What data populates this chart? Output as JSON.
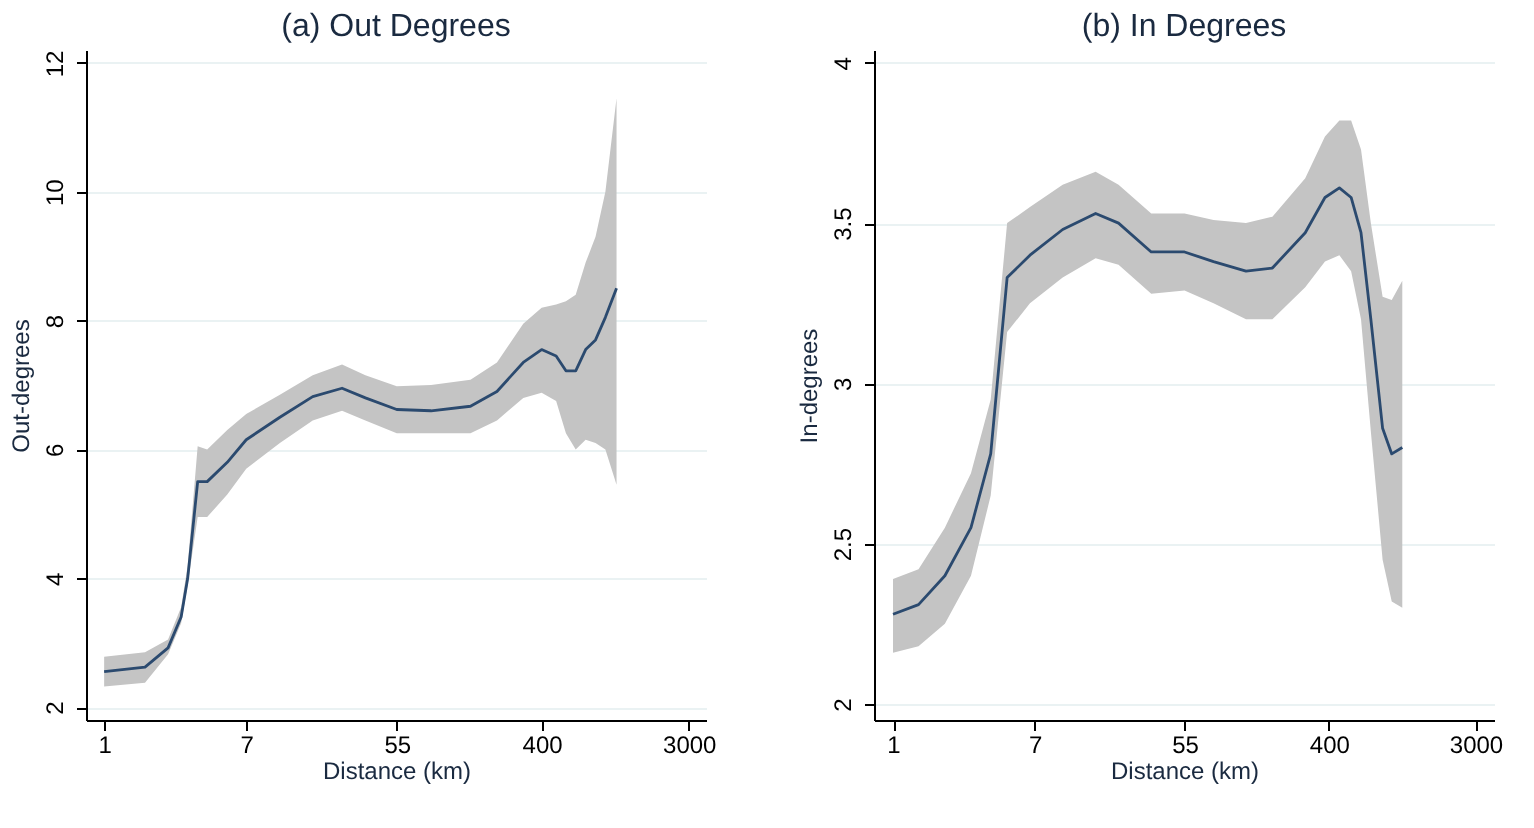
{
  "chart_data": [
    {
      "type": "line",
      "title": "(a) Out Degrees",
      "xlabel": "Distance (km)",
      "ylabel": "Out-degrees",
      "log": "x",
      "grid": "y",
      "xlim": [
        0.78,
        3800
      ],
      "xticks": [
        1,
        7,
        55,
        400,
        3000
      ],
      "ylim": [
        1.8,
        12.2
      ],
      "yticks": [
        2,
        4,
        6,
        8,
        10,
        12
      ],
      "series": [
        {
          "color": "#2b4a6f",
          "x": [
            1,
            1.75,
            2.4,
            2.87,
            3.14,
            3.6,
            4.1,
            5.4,
            7,
            11.1,
            17.4,
            26,
            35.8,
            55,
            88,
            151,
            217,
            311,
            400,
            488,
            558,
            638,
            731,
            837,
            958,
            1116
          ],
          "values": [
            2.55,
            2.62,
            2.92,
            3.4,
            4.0,
            5.5,
            5.5,
            5.8,
            6.15,
            6.5,
            6.82,
            6.95,
            6.8,
            6.62,
            6.6,
            6.67,
            6.9,
            7.35,
            7.55,
            7.45,
            7.22,
            7.22,
            7.55,
            7.7,
            8.05,
            8.5
          ],
          "lower": [
            2.32,
            2.38,
            2.82,
            3.3,
            3.9,
            4.95,
            4.95,
            5.3,
            5.7,
            6.1,
            6.45,
            6.6,
            6.45,
            6.25,
            6.25,
            6.25,
            6.45,
            6.8,
            6.88,
            6.75,
            6.25,
            6.0,
            6.15,
            6.1,
            6.0,
            5.45
          ],
          "upper": [
            2.78,
            2.85,
            3.05,
            3.55,
            4.2,
            6.05,
            6.0,
            6.3,
            6.55,
            6.85,
            7.15,
            7.32,
            7.15,
            6.98,
            7.0,
            7.08,
            7.35,
            7.95,
            8.2,
            8.25,
            8.3,
            8.4,
            8.9,
            9.3,
            10.0,
            11.45
          ]
        }
      ]
    },
    {
      "type": "line",
      "title": "(b) In Degrees",
      "xlabel": "Distance (km)",
      "ylabel": "In-degrees",
      "log": "x",
      "grid": "y",
      "xlim": [
        0.77,
        3870
      ],
      "xticks": [
        1,
        7,
        55,
        400,
        3000
      ],
      "ylim": [
        1.95,
        4.04
      ],
      "yticks": [
        2,
        2.5,
        3,
        3.5,
        4
      ],
      "series": [
        {
          "color": "#2b4a6f",
          "x": [
            1,
            1.42,
            2.04,
            2.92,
            3.83,
            4.8,
            6.57,
            10.3,
            16.2,
            22.2,
            34.8,
            55,
            81.9,
            128,
            184,
            289,
            379,
            462,
            543,
            622,
            712,
            837,
            949,
            1097
          ],
          "values": [
            2.28,
            2.31,
            2.4,
            2.55,
            2.78,
            3.33,
            3.4,
            3.48,
            3.53,
            3.5,
            3.41,
            3.41,
            3.38,
            3.35,
            3.36,
            3.47,
            3.58,
            3.61,
            3.58,
            3.47,
            3.2,
            2.86,
            2.78,
            2.8
          ],
          "lower": [
            2.16,
            2.18,
            2.25,
            2.4,
            2.65,
            3.16,
            3.25,
            3.33,
            3.39,
            3.37,
            3.28,
            3.29,
            3.25,
            3.2,
            3.2,
            3.3,
            3.38,
            3.4,
            3.35,
            3.2,
            2.85,
            2.45,
            2.32,
            2.3
          ],
          "upper": [
            2.39,
            2.42,
            2.55,
            2.72,
            2.95,
            3.5,
            3.55,
            3.62,
            3.66,
            3.62,
            3.53,
            3.53,
            3.51,
            3.5,
            3.52,
            3.64,
            3.77,
            3.82,
            3.82,
            3.73,
            3.5,
            3.27,
            3.26,
            3.32
          ]
        }
      ]
    }
  ]
}
